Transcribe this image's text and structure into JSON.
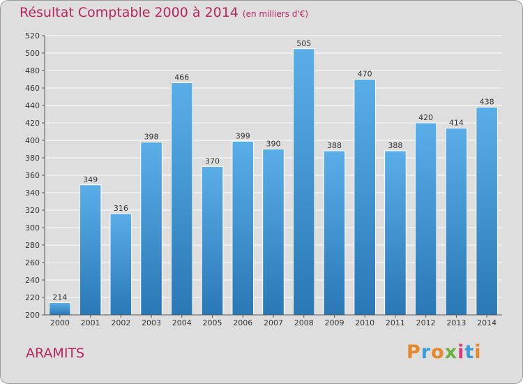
{
  "header": {
    "title": "Résultat Comptable 2000 à 2014",
    "unit": "(en milliers d'€)"
  },
  "footer": {
    "town": "ARAMITS",
    "logo_letters": [
      "P",
      "r",
      "o",
      "x",
      "i",
      "t",
      "i"
    ]
  },
  "colors": {
    "title": "#b5265e",
    "bar_top": "#5aaee8",
    "bar_bottom": "#2a78b6",
    "background": "#dedede",
    "grid": "#ffffff"
  },
  "chart_data": {
    "type": "bar",
    "title": "Résultat Comptable 2000 à 2014",
    "xlabel": "",
    "ylabel": "",
    "unit": "milliers d'€",
    "categories": [
      "2000",
      "2001",
      "2002",
      "2003",
      "2004",
      "2005",
      "2006",
      "2007",
      "2008",
      "2009",
      "2010",
      "2011",
      "2012",
      "2013",
      "2014"
    ],
    "values": [
      214,
      349,
      316,
      398,
      466,
      370,
      399,
      390,
      505,
      388,
      470,
      388,
      420,
      414,
      438
    ],
    "ylim": [
      200,
      520
    ],
    "ytick_step": 20,
    "grid": true
  }
}
